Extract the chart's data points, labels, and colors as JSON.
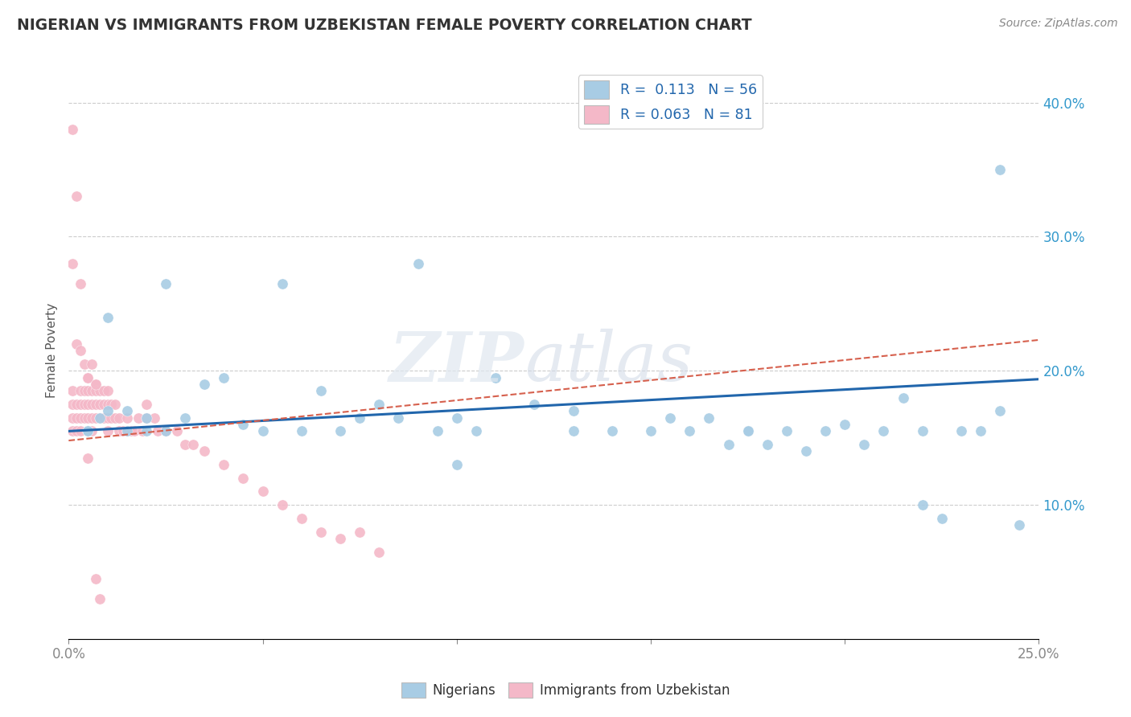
{
  "title": "NIGERIAN VS IMMIGRANTS FROM UZBEKISTAN FEMALE POVERTY CORRELATION CHART",
  "source": "Source: ZipAtlas.com",
  "ylabel": "Female Poverty",
  "ytick_vals": [
    0.1,
    0.2,
    0.3,
    0.4
  ],
  "ytick_labels": [
    "10.0%",
    "20.0%",
    "30.0%",
    "40.0%"
  ],
  "xlim": [
    0.0,
    0.25
  ],
  "ylim": [
    0.0,
    0.43
  ],
  "blue_color": "#a8cce4",
  "pink_color": "#f4b8c8",
  "line_blue": "#2166ac",
  "line_pink": "#d6604d",
  "nigerians_x": [
    0.005,
    0.008,
    0.01,
    0.015,
    0.02,
    0.025,
    0.03,
    0.035,
    0.04,
    0.045,
    0.05,
    0.055,
    0.06,
    0.065,
    0.07,
    0.075,
    0.08,
    0.085,
    0.09,
    0.095,
    0.1,
    0.105,
    0.11,
    0.12,
    0.13,
    0.14,
    0.15,
    0.155,
    0.16,
    0.165,
    0.17,
    0.175,
    0.18,
    0.185,
    0.19,
    0.195,
    0.2,
    0.205,
    0.21,
    0.215,
    0.22,
    0.225,
    0.23,
    0.235,
    0.24,
    0.245,
    0.005,
    0.01,
    0.015,
    0.02,
    0.025,
    0.1,
    0.13,
    0.175,
    0.24,
    0.22
  ],
  "nigerians_y": [
    0.155,
    0.165,
    0.17,
    0.155,
    0.155,
    0.265,
    0.165,
    0.19,
    0.195,
    0.16,
    0.155,
    0.265,
    0.155,
    0.185,
    0.155,
    0.165,
    0.175,
    0.165,
    0.28,
    0.155,
    0.165,
    0.155,
    0.195,
    0.175,
    0.17,
    0.155,
    0.155,
    0.165,
    0.155,
    0.165,
    0.145,
    0.155,
    0.145,
    0.155,
    0.14,
    0.155,
    0.16,
    0.145,
    0.155,
    0.18,
    0.155,
    0.09,
    0.155,
    0.155,
    0.17,
    0.085,
    0.155,
    0.24,
    0.17,
    0.165,
    0.155,
    0.13,
    0.155,
    0.155,
    0.35,
    0.1
  ],
  "uzbek_x": [
    0.001,
    0.001,
    0.001,
    0.001,
    0.002,
    0.002,
    0.002,
    0.003,
    0.003,
    0.003,
    0.003,
    0.004,
    0.004,
    0.004,
    0.005,
    0.005,
    0.005,
    0.005,
    0.005,
    0.006,
    0.006,
    0.006,
    0.006,
    0.007,
    0.007,
    0.007,
    0.007,
    0.008,
    0.008,
    0.008,
    0.009,
    0.009,
    0.009,
    0.01,
    0.01,
    0.01,
    0.01,
    0.011,
    0.011,
    0.012,
    0.012,
    0.013,
    0.013,
    0.014,
    0.015,
    0.015,
    0.016,
    0.017,
    0.018,
    0.019,
    0.02,
    0.02,
    0.022,
    0.023,
    0.025,
    0.028,
    0.03,
    0.032,
    0.035,
    0.04,
    0.045,
    0.05,
    0.055,
    0.06,
    0.065,
    0.07,
    0.075,
    0.08,
    0.001,
    0.001,
    0.002,
    0.002,
    0.003,
    0.003,
    0.004,
    0.005,
    0.005,
    0.006,
    0.007,
    0.007,
    0.008
  ],
  "uzbek_y": [
    0.165,
    0.175,
    0.185,
    0.155,
    0.175,
    0.165,
    0.155,
    0.185,
    0.175,
    0.165,
    0.155,
    0.185,
    0.175,
    0.165,
    0.195,
    0.185,
    0.175,
    0.165,
    0.155,
    0.185,
    0.175,
    0.165,
    0.155,
    0.19,
    0.185,
    0.175,
    0.165,
    0.185,
    0.175,
    0.165,
    0.185,
    0.175,
    0.165,
    0.185,
    0.175,
    0.165,
    0.155,
    0.175,
    0.165,
    0.175,
    0.165,
    0.155,
    0.165,
    0.155,
    0.165,
    0.155,
    0.155,
    0.155,
    0.165,
    0.155,
    0.165,
    0.175,
    0.165,
    0.155,
    0.155,
    0.155,
    0.145,
    0.145,
    0.14,
    0.13,
    0.12,
    0.11,
    0.1,
    0.09,
    0.08,
    0.075,
    0.08,
    0.065,
    0.38,
    0.28,
    0.33,
    0.22,
    0.265,
    0.215,
    0.205,
    0.195,
    0.135,
    0.205,
    0.19,
    0.045,
    0.03
  ]
}
